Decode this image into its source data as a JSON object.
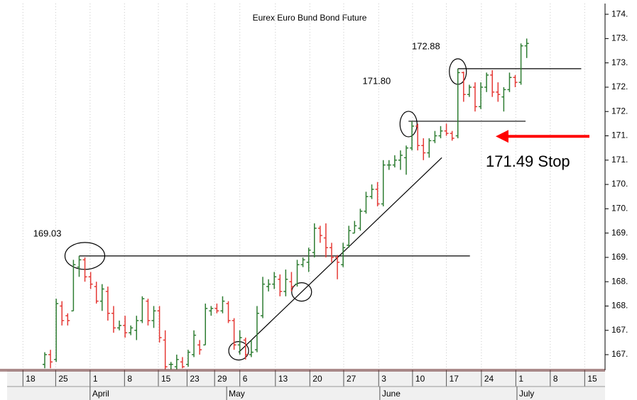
{
  "chart_data": {
    "type": "ohlc",
    "title": "Eurex Euro Bund Bond Future",
    "up_color": "#2e7d32",
    "down_color": "#e53935",
    "open": [
      166.8,
      167.0,
      166.9,
      168.0,
      167.8,
      167.9,
      168.8,
      168.95,
      168.6,
      168.4,
      168.1,
      168.3,
      167.85,
      167.55,
      167.6,
      167.45,
      167.5,
      167.7,
      168.1,
      167.7,
      167.9,
      167.3,
      166.8,
      166.75,
      166.85,
      166.8,
      167.0,
      167.2,
      167.2,
      167.9,
      167.95,
      167.9,
      168.05,
      167.7,
      167.2,
      167.3,
      167.0,
      167.1,
      167.8,
      168.4,
      168.45,
      168.55,
      168.3,
      168.5,
      168.45,
      168.85,
      168.9,
      169.1,
      169.6,
      169.4,
      169.2,
      169.0,
      168.85,
      169.25,
      169.5,
      169.6,
      169.95,
      170.25,
      170.4,
      170.1,
      170.9,
      170.9,
      171.0,
      171.05,
      171.25,
      171.7,
      171.3,
      171.15,
      171.4,
      171.5,
      171.6,
      171.55,
      171.5,
      172.8,
      172.35,
      172.5,
      172.1,
      172.5,
      172.75,
      172.4,
      172.3,
      172.45,
      172.7,
      172.6,
      173.35
    ],
    "high": [
      167.05,
      167.1,
      168.15,
      168.1,
      167.85,
      168.95,
      169.03,
      169.0,
      168.7,
      168.5,
      168.45,
      168.4,
      168.0,
      167.7,
      167.8,
      167.6,
      167.8,
      168.2,
      168.15,
      168.0,
      168.0,
      167.5,
      166.85,
      167.0,
      166.95,
      167.1,
      167.5,
      167.3,
      168.05,
      168.0,
      168.05,
      168.2,
      168.1,
      167.75,
      167.5,
      167.35,
      167.3,
      168.0,
      168.6,
      168.55,
      168.7,
      168.65,
      168.75,
      168.7,
      168.95,
      169.0,
      169.2,
      169.7,
      169.65,
      169.7,
      169.3,
      169.05,
      169.3,
      169.65,
      169.75,
      170.0,
      170.35,
      170.5,
      170.55,
      171.0,
      171.0,
      171.1,
      171.2,
      171.3,
      171.8,
      171.75,
      171.45,
      171.45,
      171.6,
      171.7,
      171.75,
      171.6,
      172.88,
      172.82,
      172.55,
      172.6,
      172.6,
      172.8,
      172.85,
      172.6,
      172.5,
      172.8,
      172.75,
      173.4,
      173.5
    ],
    "low": [
      166.72,
      166.72,
      166.85,
      167.6,
      167.6,
      167.9,
      168.6,
      168.5,
      168.35,
      168.05,
      167.9,
      167.7,
      167.45,
      167.5,
      167.35,
      167.4,
      167.3,
      167.65,
      167.6,
      167.55,
      167.25,
      166.7,
      166.7,
      166.7,
      166.72,
      166.75,
      166.95,
      167.0,
      167.2,
      167.8,
      167.85,
      167.85,
      167.65,
      167.1,
      167.0,
      166.9,
      166.95,
      167.05,
      167.75,
      168.3,
      168.35,
      168.2,
      168.2,
      168.3,
      168.4,
      168.8,
      168.7,
      169.0,
      169.3,
      169.0,
      168.9,
      168.55,
      168.8,
      169.2,
      169.5,
      169.55,
      169.9,
      170.2,
      170.05,
      170.05,
      170.8,
      170.85,
      170.8,
      170.7,
      171.2,
      171.2,
      171.0,
      171.05,
      171.35,
      171.45,
      171.5,
      171.4,
      171.45,
      172.2,
      172.3,
      172.0,
      172.05,
      172.4,
      172.3,
      172.2,
      172.0,
      172.4,
      172.5,
      172.55,
      173.1
    ],
    "close": [
      167.0,
      166.85,
      168.05,
      167.7,
      167.7,
      168.85,
      168.95,
      168.6,
      168.45,
      168.1,
      168.35,
      167.85,
      167.55,
      167.6,
      167.45,
      167.55,
      167.7,
      168.15,
      167.7,
      167.9,
      167.35,
      166.75,
      166.8,
      166.9,
      166.75,
      167.05,
      167.4,
      167.1,
      167.95,
      167.95,
      167.9,
      168.1,
      167.7,
      167.2,
      167.35,
      167.0,
      167.05,
      167.85,
      168.45,
      168.45,
      168.6,
      168.3,
      168.55,
      168.4,
      168.85,
      168.95,
      169.15,
      169.6,
      169.45,
      169.2,
      169.0,
      168.9,
      169.2,
      169.55,
      169.65,
      169.95,
      170.25,
      170.4,
      170.1,
      170.9,
      170.9,
      171.0,
      171.1,
      171.25,
      171.7,
      171.3,
      171.15,
      171.4,
      171.5,
      171.6,
      171.55,
      171.45,
      172.8,
      172.35,
      172.5,
      172.1,
      172.5,
      172.75,
      172.4,
      172.35,
      172.45,
      172.7,
      172.6,
      173.35,
      173.4
    ],
    "xlim": [
      -6.56,
      97.65
    ],
    "ylim": [
      166.68,
      174.22
    ],
    "yticks": [
      {
        "value": 174.0,
        "label": "174."
      },
      {
        "value": 173.5,
        "label": "173."
      },
      {
        "value": 173.0,
        "label": "173."
      },
      {
        "value": 172.5,
        "label": "172."
      },
      {
        "value": 172.0,
        "label": "172."
      },
      {
        "value": 171.5,
        "label": "171."
      },
      {
        "value": 171.0,
        "label": "171."
      },
      {
        "value": 170.5,
        "label": "170."
      },
      {
        "value": 170.0,
        "label": "170."
      },
      {
        "value": 169.5,
        "label": "169."
      },
      {
        "value": 169.0,
        "label": "169."
      },
      {
        "value": 168.5,
        "label": "168."
      },
      {
        "value": 168.0,
        "label": "168."
      },
      {
        "value": 167.5,
        "label": "167."
      },
      {
        "value": 167.0,
        "label": "167."
      }
    ],
    "xticks": [
      {
        "value": -3.8,
        "label": "18"
      },
      {
        "value": 1.9,
        "label": "25"
      },
      {
        "value": 7.9,
        "label": "1"
      },
      {
        "value": 13.9,
        "label": "8"
      },
      {
        "value": 19.8,
        "label": "15"
      },
      {
        "value": 24.8,
        "label": "23"
      },
      {
        "value": 29.6,
        "label": "29"
      },
      {
        "value": 34.0,
        "label": "6"
      },
      {
        "value": 40.2,
        "label": "13"
      },
      {
        "value": 46.2,
        "label": "20"
      },
      {
        "value": 52.1,
        "label": "27"
      },
      {
        "value": 58.2,
        "label": "3"
      },
      {
        "value": 64.1,
        "label": "10"
      },
      {
        "value": 70.0,
        "label": "17"
      },
      {
        "value": 76.1,
        "label": "24"
      },
      {
        "value": 82.1,
        "label": "1"
      },
      {
        "value": 88.1,
        "label": "8"
      },
      {
        "value": 94.1,
        "label": "15"
      }
    ],
    "month_ticks": [
      {
        "value": 7.9,
        "label": "April"
      },
      {
        "value": 31.7,
        "label": "May"
      },
      {
        "value": 58.4,
        "label": "June"
      },
      {
        "value": 82.3,
        "label": "July"
      }
    ],
    "grid": true,
    "levels": [
      {
        "value": 169.03,
        "label": "169.03",
        "x": [
          6,
          74.1
        ]
      },
      {
        "value": 171.8,
        "label": "171.80",
        "x": [
          63.4,
          83.8
        ]
      },
      {
        "value": 172.88,
        "label": "172.88",
        "x": [
          72,
          93.5
        ]
      }
    ],
    "trendline": {
      "x": [
        33.8,
        69.2
      ],
      "y": [
        167.05,
        171.05
      ]
    },
    "stop": {
      "value": 171.49,
      "label": "171.49 Stop",
      "color": "#ff0000"
    }
  }
}
